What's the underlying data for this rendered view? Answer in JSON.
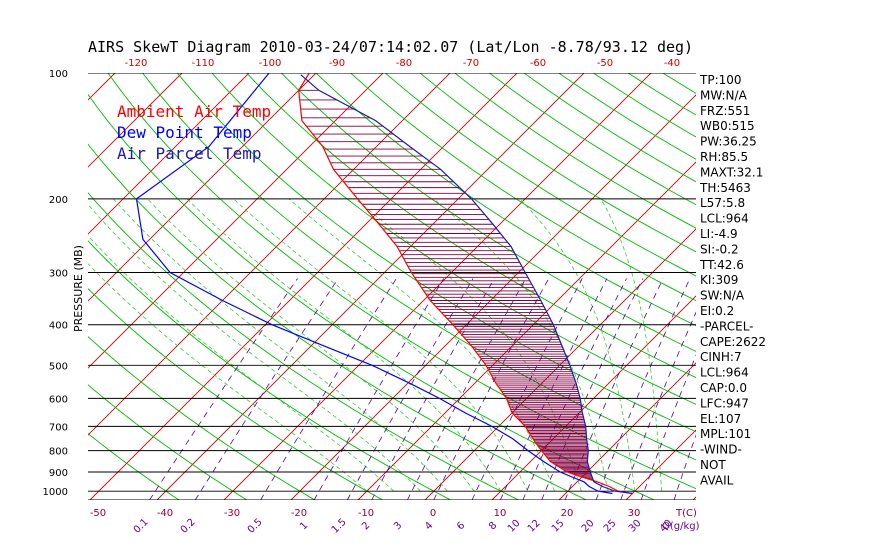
{
  "title": "AIRS SkewT Diagram 2010-03-24/07:14:02.07 (Lat/Lon -8.78/93.12 deg)",
  "colors": {
    "ambient": "#ff0000",
    "dewpoint": "#0000ff",
    "parcel": "#1a1ab0",
    "isotherm": "#cc0000",
    "dry_adiabat": "#00bb00",
    "moist_adiabat": "#33cc33",
    "mixing_ratio": "#550099",
    "cape_fill": "#800040",
    "axis": "#000000",
    "bottom_labels": "#990033",
    "mixing_labels": "#660099"
  },
  "legend": [
    {
      "label": "Ambient Air Temp",
      "color": "#ff0000"
    },
    {
      "label": "Dew Point Temp",
      "color": "#0000ff"
    },
    {
      "label": "Air Parcel Temp",
      "color": "#1a1ab0"
    }
  ],
  "y_axis_label": "PRESSURE (MB)",
  "top_tick_labels": [
    "-120",
    "-110",
    "-100",
    "-90",
    "-80",
    "-70",
    "-60",
    "-50",
    "-40"
  ],
  "bottom_tick_labels": [
    "-50",
    "-40",
    "-30",
    "-20",
    "-10",
    "0",
    "10",
    "20",
    "30"
  ],
  "bottom_unit_label": "T(C)",
  "mixing_ratio_labels": [
    "0.1",
    "0.2",
    "0.5",
    "1",
    "1.5",
    "2",
    "3",
    "4",
    "6",
    "8",
    "10",
    "12",
    "15",
    "20",
    "25",
    "30",
    "40"
  ],
  "mixing_unit_label": "Q(g/kg)",
  "pressure_labels": [
    "100",
    "200",
    "300",
    "400",
    "500",
    "600",
    "700",
    "800",
    "900",
    "1000"
  ],
  "stats": [
    "TP:100",
    "MW:N/A",
    "FRZ:551",
    "WB0:515",
    "PW:36.25",
    "RH:85.5",
    "MAXT:32.1",
    "TH:5463",
    "L57:5.8",
    "LCL:964",
    "LI:-4.9",
    "SI:-0.2",
    "TT:42.6",
    "KI:309",
    "SW:N/A",
    "EI:0.2",
    "-PARCEL-",
    "CAPE:2622",
    "CINH:7",
    "LCL:964",
    "CAP:0.0",
    "LFC:947",
    "EL:107",
    "MPL:101",
    "-WIND-",
    "NOT",
    "AVAIL"
  ],
  "chart_data": {
    "type": "line",
    "title": "AIRS SkewT Diagram 2010-03-24/07:14:02.07 (Lat/Lon -8.78/93.12 deg)",
    "ylabel": "PRESSURE (MB)",
    "xlabel": "T(C)",
    "ylim": [
      1050,
      100
    ],
    "y_scale": "log",
    "xlim_bottom": [
      -53,
      38
    ],
    "grid": true,
    "series": [
      {
        "name": "Ambient Air Temp",
        "pressure": [
          100,
          110,
          130,
          150,
          170,
          200,
          230,
          260,
          300,
          350,
          400,
          450,
          500,
          550,
          600,
          650,
          700,
          750,
          800,
          850,
          900,
          925,
          950,
          975,
          1000,
          1013
        ],
        "temperature": [
          -81,
          -80,
          -75,
          -68,
          -63,
          -55,
          -48,
          -42,
          -36,
          -29,
          -22,
          -16,
          -11,
          -7,
          -3,
          0,
          4,
          7,
          10,
          13,
          17,
          20,
          23,
          25.5,
          27.5,
          30
        ]
      },
      {
        "name": "Dew Point Temp",
        "pressure": [
          100,
          150,
          200,
          250,
          300,
          350,
          400,
          450,
          500,
          550,
          600,
          650,
          700,
          750,
          800,
          850,
          900,
          925,
          950,
          975,
          1000,
          1013
        ],
        "temperature": [
          -87,
          -85,
          -88,
          -81,
          -72,
          -60,
          -49,
          -38,
          -28,
          -20,
          -13,
          -7,
          -1,
          4,
          8,
          12,
          16,
          18.5,
          21,
          22.5,
          24.5,
          27
        ]
      },
      {
        "name": "Air Parcel Temp",
        "pressure": [
          101,
          110,
          130,
          150,
          170,
          200,
          230,
          260,
          300,
          350,
          400,
          450,
          500,
          550,
          600,
          650,
          700,
          750,
          800,
          850,
          900,
          925,
          950,
          975,
          1000,
          1013
        ],
        "temperature": [
          -82,
          -77,
          -64,
          -55,
          -47,
          -38,
          -31,
          -25,
          -19,
          -12.5,
          -7,
          -2.5,
          1.5,
          5,
          8,
          10.5,
          13,
          15,
          17,
          18.5,
          20.5,
          21.5,
          22.5,
          24.5,
          27,
          30
        ]
      }
    ]
  }
}
